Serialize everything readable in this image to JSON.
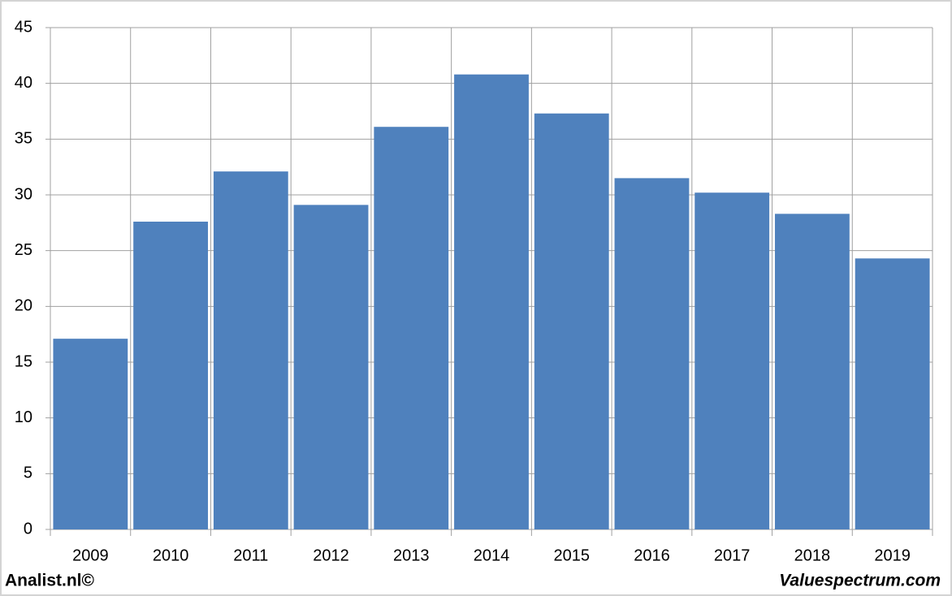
{
  "chart_data": {
    "type": "bar",
    "categories": [
      "2009",
      "2010",
      "2011",
      "2012",
      "2013",
      "2014",
      "2015",
      "2016",
      "2017",
      "2018",
      "2019"
    ],
    "values": [
      17.1,
      27.6,
      32.1,
      29.1,
      36.1,
      40.8,
      37.3,
      31.5,
      30.2,
      28.3,
      24.3
    ],
    "color": "#4f81bd",
    "ylim": [
      0,
      45
    ],
    "yticks": [
      0,
      5,
      10,
      15,
      20,
      25,
      30,
      35,
      40,
      45
    ],
    "grid": true,
    "footer_left": "Analist.nl©",
    "footer_right": "Valuespectrum.com"
  }
}
